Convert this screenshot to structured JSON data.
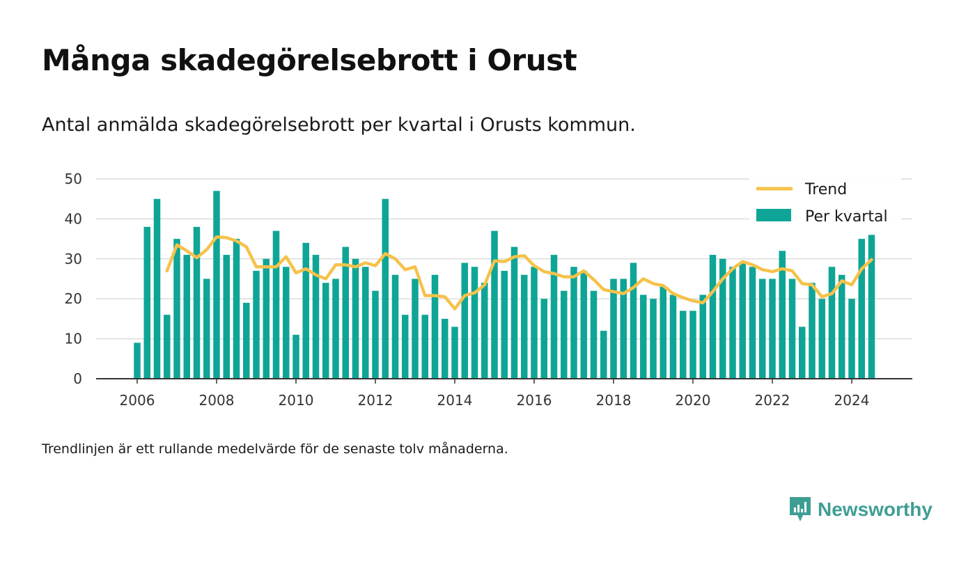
{
  "title": "Många skadegörelsebrott i Orust",
  "subtitle": "Antal anmälda skadegörelsebrott per kvartal i Orusts kommun.",
  "footnote": "Trendlinjen är ett rullande medelvärde för de senaste tolv månaderna.",
  "brand": {
    "name": "Newsworthy",
    "icon": "newsworthy-logo-icon",
    "color": "#3f9e94"
  },
  "colors": {
    "bars": "#0fa596",
    "trend": "#f5c24a",
    "grid": "#dcdcdc",
    "axis": "#333333"
  },
  "chart_data": {
    "type": "bar",
    "x_label": "",
    "y_label": "",
    "ylim": [
      0,
      50
    ],
    "y_ticks": [
      0,
      10,
      20,
      30,
      40,
      50
    ],
    "x_ticks": [
      "2006",
      "2008",
      "2010",
      "2012",
      "2014",
      "2016",
      "2018",
      "2020",
      "2022",
      "2024"
    ],
    "grid": true,
    "legend_position": "top-right",
    "legend": [
      {
        "label": "Trend",
        "type": "line"
      },
      {
        "label": "Per kvartal",
        "type": "bar"
      }
    ],
    "categories": [
      "2006-Q1",
      "2006-Q2",
      "2006-Q3",
      "2006-Q4",
      "2007-Q1",
      "2007-Q2",
      "2007-Q3",
      "2007-Q4",
      "2008-Q1",
      "2008-Q2",
      "2008-Q3",
      "2008-Q4",
      "2009-Q1",
      "2009-Q2",
      "2009-Q3",
      "2009-Q4",
      "2010-Q1",
      "2010-Q2",
      "2010-Q3",
      "2010-Q4",
      "2011-Q1",
      "2011-Q2",
      "2011-Q3",
      "2011-Q4",
      "2012-Q1",
      "2012-Q2",
      "2012-Q3",
      "2012-Q4",
      "2013-Q1",
      "2013-Q2",
      "2013-Q3",
      "2013-Q4",
      "2014-Q1",
      "2014-Q2",
      "2014-Q3",
      "2014-Q4",
      "2015-Q1",
      "2015-Q2",
      "2015-Q3",
      "2015-Q4",
      "2016-Q1",
      "2016-Q2",
      "2016-Q3",
      "2016-Q4",
      "2017-Q1",
      "2017-Q2",
      "2017-Q3",
      "2017-Q4",
      "2018-Q1",
      "2018-Q2",
      "2018-Q3",
      "2018-Q4",
      "2019-Q1",
      "2019-Q2",
      "2019-Q3",
      "2019-Q4",
      "2020-Q1",
      "2020-Q2",
      "2020-Q3",
      "2020-Q4",
      "2021-Q1",
      "2021-Q2",
      "2021-Q3",
      "2021-Q4",
      "2022-Q1",
      "2022-Q2",
      "2022-Q3",
      "2022-Q4",
      "2023-Q1",
      "2023-Q2",
      "2023-Q3",
      "2023-Q4",
      "2024-Q1",
      "2024-Q2",
      "2024-Q3"
    ],
    "series": [
      {
        "name": "Per kvartal",
        "type": "bar",
        "values": [
          9,
          38,
          45,
          16,
          35,
          31,
          38,
          25,
          47,
          31,
          35,
          19,
          27,
          30,
          37,
          28,
          11,
          34,
          31,
          24,
          25,
          33,
          30,
          28,
          22,
          45,
          26,
          16,
          25,
          16,
          26,
          15,
          13,
          29,
          28,
          24,
          37,
          27,
          33,
          26,
          28,
          20,
          31,
          22,
          28,
          27,
          22,
          12,
          25,
          25,
          29,
          21,
          20,
          23,
          21,
          17,
          17,
          21,
          31,
          30,
          28,
          29,
          28,
          25,
          25,
          32,
          25,
          13,
          24,
          20,
          28,
          26,
          20,
          35,
          36
        ]
      },
      {
        "name": "Trend",
        "type": "line",
        "values": [
          null,
          null,
          null,
          27,
          33.5,
          32,
          30.3,
          32.3,
          35.5,
          35.3,
          34.5,
          33,
          28,
          28,
          28,
          30.5,
          26.5,
          27.5,
          26,
          25,
          28.5,
          28.5,
          28,
          29,
          28.3,
          31.3,
          30,
          27.3,
          28,
          20.8,
          20.8,
          20.5,
          17.5,
          20.8,
          21.5,
          23.5,
          29.5,
          29.3,
          30.5,
          30.8,
          28.3,
          26.8,
          26.3,
          25.5,
          25.5,
          27,
          24.8,
          22.3,
          21.8,
          21.3,
          22.8,
          25,
          23.8,
          23.3,
          21.3,
          20.3,
          19.5,
          19,
          21.8,
          25,
          27.5,
          29.3,
          28.5,
          27.3,
          26.8,
          27.5,
          27,
          23.8,
          23.5,
          20.5,
          21.3,
          24.5,
          23.5,
          27.5,
          29.8
        ]
      }
    ]
  }
}
